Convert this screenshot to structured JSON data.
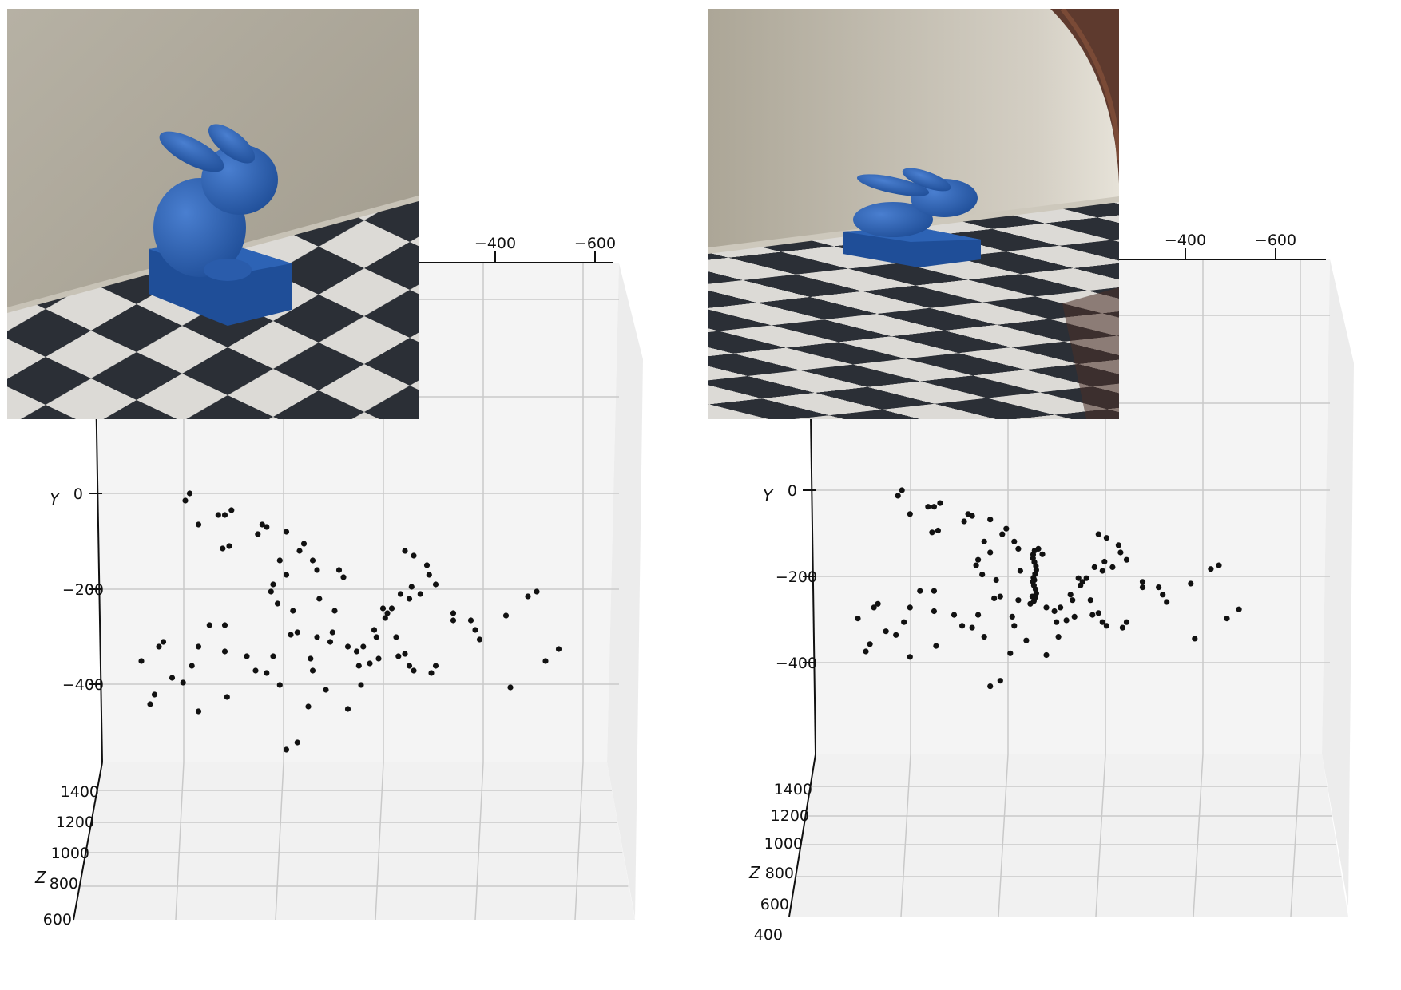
{
  "chart_data": [
    {
      "type": "scatter",
      "projection": "3d",
      "axes": {
        "x_ticks_top": [
          "−400",
          "−600"
        ],
        "y_label": "Y",
        "y_ticks": [
          "0",
          "−200",
          "−400"
        ],
        "z_label": "Z",
        "z_ticks": [
          "1400",
          "1200",
          "1000",
          "800",
          "600"
        ]
      },
      "xlim": [
        -700,
        500
      ],
      "ylim": [
        -560,
        260
      ],
      "grid": true,
      "inset": "rendered-scene-bunny-near",
      "points_xy": [
        [
          -350,
          0
        ],
        [
          -360,
          -15
        ],
        [
          -330,
          -65
        ],
        [
          -285,
          -45
        ],
        [
          -270,
          -45
        ],
        [
          -275,
          -115
        ],
        [
          -255,
          -35
        ],
        [
          -260,
          -110
        ],
        [
          -185,
          -65
        ],
        [
          -175,
          -70
        ],
        [
          -195,
          -85
        ],
        [
          -130,
          -80
        ],
        [
          -145,
          -140
        ],
        [
          -160,
          -190
        ],
        [
          -165,
          -205
        ],
        [
          -150,
          -230
        ],
        [
          -115,
          -245
        ],
        [
          -90,
          -105
        ],
        [
          -100,
          -120
        ],
        [
          -70,
          -140
        ],
        [
          -60,
          -160
        ],
        [
          -55,
          -220
        ],
        [
          -20,
          -245
        ],
        [
          -25,
          -290
        ],
        [
          -30,
          -310
        ],
        [
          -10,
          -160
        ],
        [
          0,
          -175
        ],
        [
          10,
          -320
        ],
        [
          -60,
          -300
        ],
        [
          -40,
          -410
        ],
        [
          -75,
          -345
        ],
        [
          -70,
          -370
        ],
        [
          -130,
          -170
        ],
        [
          -120,
          -295
        ],
        [
          -105,
          -290
        ],
        [
          -160,
          -340
        ],
        [
          -175,
          -375
        ],
        [
          40,
          -400
        ],
        [
          30,
          -330
        ],
        [
          35,
          -360
        ],
        [
          45,
          -320
        ],
        [
          60,
          -355
        ],
        [
          70,
          -285
        ],
        [
          75,
          -300
        ],
        [
          80,
          -345
        ],
        [
          90,
          -240
        ],
        [
          95,
          -260
        ],
        [
          100,
          -250
        ],
        [
          110,
          -240
        ],
        [
          120,
          -300
        ],
        [
          125,
          -340
        ],
        [
          140,
          -335
        ],
        [
          150,
          -360
        ],
        [
          160,
          -370
        ],
        [
          150,
          -220
        ],
        [
          155,
          -195
        ],
        [
          175,
          -210
        ],
        [
          130,
          -210
        ],
        [
          200,
          -375
        ],
        [
          210,
          -360
        ],
        [
          140,
          -120
        ],
        [
          160,
          -130
        ],
        [
          190,
          -150
        ],
        [
          195,
          -170
        ],
        [
          210,
          -190
        ],
        [
          250,
          -250
        ],
        [
          250,
          -265
        ],
        [
          290,
          -265
        ],
        [
          300,
          -285
        ],
        [
          310,
          -305
        ],
        [
          370,
          -255
        ],
        [
          420,
          -215
        ],
        [
          440,
          -205
        ],
        [
          460,
          -350
        ],
        [
          490,
          -325
        ],
        [
          380,
          -405
        ],
        [
          10,
          -450
        ],
        [
          -80,
          -445
        ],
        [
          -200,
          -370
        ],
        [
          -220,
          -340
        ],
        [
          -270,
          -330
        ],
        [
          -270,
          -275
        ],
        [
          -305,
          -275
        ],
        [
          -330,
          -320
        ],
        [
          -345,
          -360
        ],
        [
          -365,
          -395
        ],
        [
          -390,
          -385
        ],
        [
          -410,
          -310
        ],
        [
          -420,
          -320
        ],
        [
          -460,
          -350
        ],
        [
          -430,
          -420
        ],
        [
          -440,
          -440
        ],
        [
          -130,
          -535
        ],
        [
          -105,
          -520
        ],
        [
          -145,
          -400
        ],
        [
          -265,
          -425
        ],
        [
          -330,
          -455
        ]
      ],
      "note_points_units": "screen-projected approximate"
    },
    {
      "type": "scatter",
      "projection": "3d",
      "axes": {
        "x_ticks_top": [
          "−400",
          "−600"
        ],
        "y_label": "Y",
        "y_ticks": [
          "0",
          "−200",
          "−400"
        ],
        "z_label": "Z",
        "z_ticks": [
          "1400",
          "1200",
          "1000",
          "800",
          "600",
          "400"
        ]
      },
      "grid": true,
      "inset": "rendered-scene-bunny-far"
    }
  ],
  "colors": {
    "pane": "#f3f3f3",
    "grid": "#c8c8c8",
    "points": "#111111",
    "floor_dark": "#2b2f36",
    "floor_light": "#dcdad6",
    "wall": "#aaa394",
    "bunny": "#2458a8"
  },
  "left": {
    "ticks": {
      "x1": "−400",
      "x2": "−600",
      "y_label": "Y",
      "y0": "0",
      "y1": "−200",
      "y2": "−400",
      "z_label": "Z",
      "z1": "1400",
      "z2": "1200",
      "z3": "1000",
      "z4": "800",
      "z5": "600"
    }
  },
  "right": {
    "ticks": {
      "x1": "−400",
      "x2": "−600",
      "y_label": "Y",
      "y0": "0",
      "y1": "−200",
      "y2": "−400",
      "z_label": "Z",
      "z1": "1400",
      "z2": "1200",
      "z3": "1000",
      "z4": "800",
      "z5": "600",
      "z6": "400"
    }
  }
}
